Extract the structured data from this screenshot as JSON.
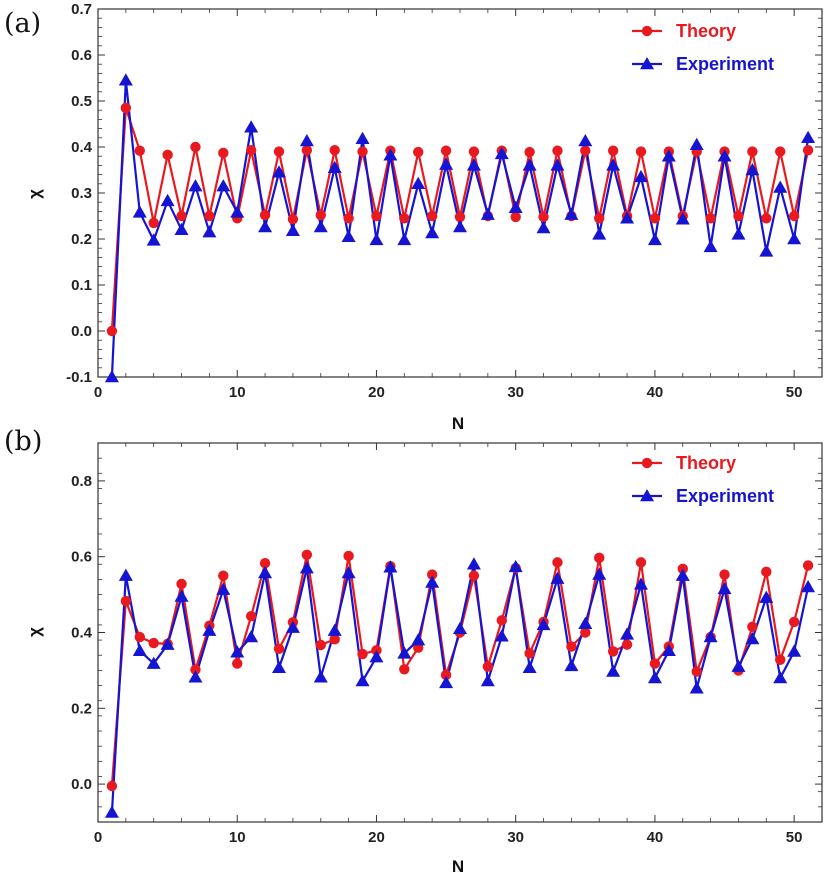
{
  "colors": {
    "theory": "#e8191f",
    "experiment": "#1414d2",
    "frame": "#333333"
  },
  "chart_data": [
    {
      "type": "line",
      "panel_label": "(a)",
      "xlabel": "N",
      "ylabel": "χ",
      "xlim": [
        0,
        52
      ],
      "ylim": [
        -0.1,
        0.7
      ],
      "xticks": [
        0,
        10,
        20,
        30,
        40,
        50
      ],
      "xtick_labels": [
        "0",
        "10",
        "20",
        "30",
        "40",
        "50"
      ],
      "yticks": [
        -0.1,
        0.0,
        0.1,
        0.2,
        0.3,
        0.4,
        0.5,
        0.6,
        0.7
      ],
      "ytick_labels": [
        "-0.1",
        "0.0",
        "0.1",
        "0.2",
        "0.3",
        "0.4",
        "0.5",
        "0.6",
        "0.7"
      ],
      "legend_position": "top-right",
      "x": [
        1,
        2,
        3,
        4,
        5,
        6,
        7,
        8,
        9,
        10,
        11,
        12,
        13,
        14,
        15,
        16,
        17,
        18,
        19,
        20,
        21,
        22,
        23,
        24,
        25,
        26,
        27,
        28,
        29,
        30,
        31,
        32,
        33,
        34,
        35,
        36,
        37,
        38,
        39,
        40,
        41,
        42,
        43,
        44,
        45,
        46,
        47,
        48,
        49,
        50,
        51
      ],
      "series": [
        {
          "name": "Theory",
          "marker": "circle",
          "color_key": "theory",
          "values": [
            0.0,
            0.485,
            0.392,
            0.235,
            0.383,
            0.25,
            0.4,
            0.25,
            0.387,
            0.245,
            0.393,
            0.252,
            0.39,
            0.243,
            0.393,
            0.252,
            0.393,
            0.245,
            0.39,
            0.25,
            0.392,
            0.245,
            0.389,
            0.25,
            0.392,
            0.248,
            0.39,
            0.25,
            0.392,
            0.248,
            0.389,
            0.248,
            0.392,
            0.25,
            0.392,
            0.245,
            0.392,
            0.25,
            0.39,
            0.245,
            0.39,
            0.25,
            0.39,
            0.245,
            0.39,
            0.25,
            0.39,
            0.245,
            0.39,
            0.25,
            0.393
          ]
        },
        {
          "name": "Experiment",
          "marker": "triangle",
          "color_key": "experiment",
          "values": [
            -0.1,
            0.545,
            0.258,
            0.197,
            0.283,
            0.22,
            0.315,
            0.215,
            0.315,
            0.258,
            0.443,
            0.226,
            0.345,
            0.218,
            0.413,
            0.226,
            0.355,
            0.205,
            0.418,
            0.198,
            0.382,
            0.198,
            0.32,
            0.213,
            0.362,
            0.226,
            0.36,
            0.253,
            0.385,
            0.268,
            0.36,
            0.224,
            0.36,
            0.253,
            0.413,
            0.21,
            0.36,
            0.245,
            0.335,
            0.198,
            0.38,
            0.243,
            0.405,
            0.183,
            0.38,
            0.21,
            0.35,
            0.173,
            0.312,
            0.2,
            0.42
          ]
        }
      ]
    },
    {
      "type": "line",
      "panel_label": "(b)",
      "xlabel": "N",
      "ylabel": "χ",
      "xlim": [
        0,
        52
      ],
      "ylim": [
        -0.1,
        0.9
      ],
      "xticks": [
        0,
        10,
        20,
        30,
        40,
        50
      ],
      "xtick_labels": [
        "0",
        "10",
        "20",
        "30",
        "40",
        "50"
      ],
      "yticks": [
        0.0,
        0.2,
        0.4,
        0.6,
        0.8
      ],
      "ytick_labels": [
        "0.0",
        "0.2",
        "0.4",
        "0.6",
        "0.8"
      ],
      "legend_position": "top-right",
      "x": [
        1,
        2,
        3,
        4,
        5,
        6,
        7,
        8,
        9,
        10,
        11,
        12,
        13,
        14,
        15,
        16,
        17,
        18,
        19,
        20,
        21,
        22,
        23,
        24,
        25,
        26,
        27,
        28,
        29,
        30,
        31,
        32,
        33,
        34,
        35,
        36,
        37,
        38,
        39,
        40,
        41,
        42,
        43,
        44,
        45,
        46,
        47,
        48,
        49,
        50,
        51
      ],
      "series": [
        {
          "name": "Theory",
          "marker": "circle",
          "color_key": "theory",
          "values": [
            -0.005,
            0.483,
            0.388,
            0.372,
            0.37,
            0.528,
            0.302,
            0.418,
            0.55,
            0.318,
            0.443,
            0.583,
            0.357,
            0.427,
            0.605,
            0.367,
            0.382,
            0.602,
            0.343,
            0.353,
            0.575,
            0.303,
            0.36,
            0.553,
            0.288,
            0.4,
            0.55,
            0.31,
            0.432,
            0.57,
            0.345,
            0.428,
            0.585,
            0.363,
            0.4,
            0.597,
            0.35,
            0.368,
            0.585,
            0.318,
            0.363,
            0.568,
            0.297,
            0.388,
            0.553,
            0.3,
            0.415,
            0.56,
            0.328,
            0.428,
            0.577
          ]
        },
        {
          "name": "Experiment",
          "marker": "triangle",
          "color_key": "experiment",
          "values": [
            -0.075,
            0.55,
            0.352,
            0.318,
            0.368,
            0.495,
            0.282,
            0.405,
            0.513,
            0.348,
            0.388,
            0.557,
            0.307,
            0.413,
            0.57,
            0.282,
            0.405,
            0.557,
            0.272,
            0.335,
            0.572,
            0.345,
            0.38,
            0.532,
            0.267,
            0.41,
            0.58,
            0.272,
            0.39,
            0.573,
            0.307,
            0.42,
            0.542,
            0.312,
            0.423,
            0.553,
            0.297,
            0.395,
            0.527,
            0.28,
            0.352,
            0.55,
            0.253,
            0.388,
            0.515,
            0.31,
            0.383,
            0.492,
            0.28,
            0.35,
            0.52
          ]
        }
      ]
    }
  ]
}
